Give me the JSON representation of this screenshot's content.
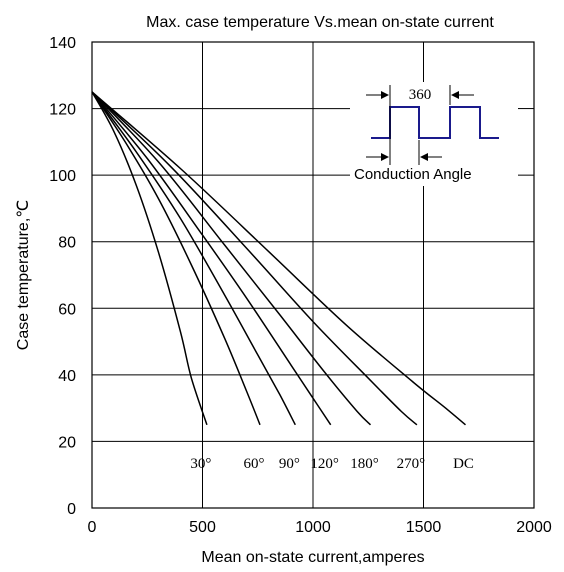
{
  "chart_data": {
    "type": "line",
    "title": "Max. case temperature  Vs.mean on-state current",
    "xlabel": "Mean on-state current,amperes",
    "ylabel": "Case temperature,℃",
    "xlim": [
      0,
      2000
    ],
    "ylim": [
      0,
      140
    ],
    "xticks": [
      "0",
      "500",
      "1000",
      "1500",
      "2000"
    ],
    "yticks": [
      "0",
      "20",
      "40",
      "60",
      "80",
      "100",
      "120",
      "140"
    ],
    "grid": true,
    "series": [
      {
        "name": "30°",
        "x": [
          0,
          100,
          200,
          300,
          400,
          450,
          520
        ],
        "y": [
          125,
          113,
          97,
          77,
          53,
          39,
          25
        ]
      },
      {
        "name": "60°",
        "x": [
          0,
          150,
          300,
          450,
          600,
          700,
          760
        ],
        "y": [
          125,
          110,
          93,
          73,
          51,
          35,
          25
        ]
      },
      {
        "name": "90°",
        "x": [
          0,
          200,
          400,
          600,
          750,
          850,
          920
        ],
        "y": [
          125,
          107,
          87,
          64,
          46,
          34,
          25
        ]
      },
      {
        "name": "120°",
        "x": [
          0,
          250,
          500,
          700,
          900,
          1000,
          1080
        ],
        "y": [
          125,
          105,
          82,
          63,
          43,
          33,
          25
        ]
      },
      {
        "name": "180°",
        "x": [
          0,
          300,
          600,
          850,
          1050,
          1200,
          1260
        ],
        "y": [
          125,
          104,
          79,
          58,
          41,
          29,
          25
        ]
      },
      {
        "name": "270°",
        "x": [
          0,
          350,
          700,
          1000,
          1250,
          1400,
          1470
        ],
        "y": [
          125,
          103,
          78,
          56,
          39,
          29,
          25
        ]
      },
      {
        "name": "DC",
        "x": [
          0,
          400,
          800,
          1150,
          1450,
          1600,
          1690
        ],
        "y": [
          125,
          102,
          77,
          55,
          38,
          30,
          25
        ]
      }
    ],
    "series_labels": [
      "30°",
      "60°",
      "90°",
      "120°",
      "180°",
      "270°",
      "DC"
    ],
    "inset": {
      "period_label": "360",
      "conduction_label": "Conduction  Angle",
      "waveform_color": "#1a1a8c"
    }
  }
}
